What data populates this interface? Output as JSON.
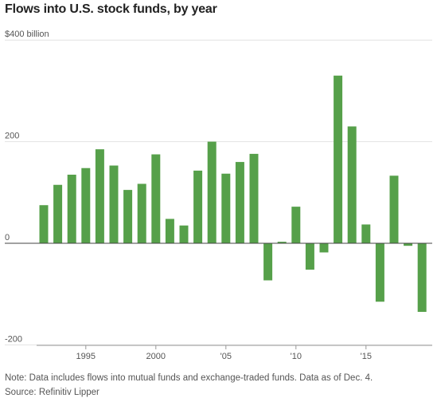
{
  "chart_data": {
    "type": "bar",
    "title": "Flows into U.S. stock funds, by year",
    "ylabel": "",
    "xlabel": "",
    "y_unit_label": "$400 billion",
    "ylim": [
      -200,
      400
    ],
    "yticks": [
      {
        "value": 400,
        "label": "$400 billion"
      },
      {
        "value": 200,
        "label": "200"
      },
      {
        "value": 0,
        "label": "0"
      },
      {
        "value": -200,
        "label": "-200"
      }
    ],
    "xticks": [
      {
        "year": 1995,
        "label": "1995"
      },
      {
        "year": 2000,
        "label": "2000"
      },
      {
        "year": 2005,
        "label": "'05"
      },
      {
        "year": 2010,
        "label": "'10"
      },
      {
        "year": 2015,
        "label": "'15"
      }
    ],
    "grid": true,
    "bar_color": "#56a04a",
    "x": [
      1992,
      1993,
      1994,
      1995,
      1996,
      1997,
      1998,
      1999,
      2000,
      2001,
      2002,
      2003,
      2004,
      2005,
      2006,
      2007,
      2008,
      2009,
      2010,
      2011,
      2012,
      2013,
      2014,
      2015,
      2016,
      2017,
      2018,
      2019
    ],
    "values": [
      75,
      115,
      135,
      148,
      185,
      153,
      105,
      117,
      175,
      48,
      35,
      143,
      200,
      137,
      160,
      176,
      -73,
      3,
      72,
      -52,
      -18,
      330,
      230,
      37,
      -115,
      133,
      -5,
      -135
    ]
  },
  "note": "Note: Data includes flows into mutual funds and exchange-traded funds. Data as of Dec. 4.",
  "source": "Source: Refinitiv Lipper"
}
